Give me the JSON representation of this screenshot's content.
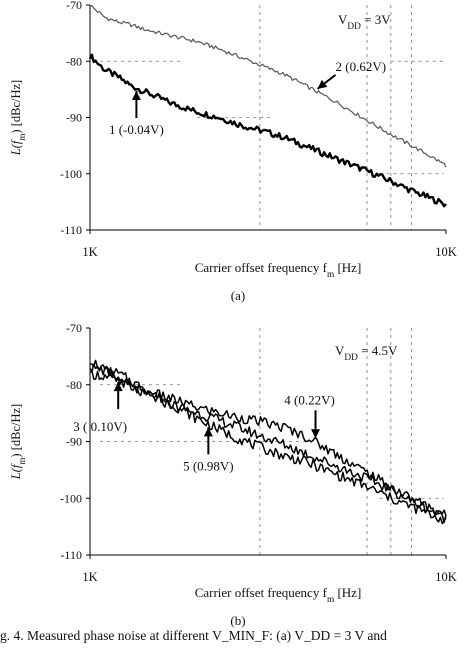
{
  "figure_caption": "g. 4.   Measured phase noise at different V_MIN_F: (a) V_DD = 3 V and",
  "chart_data": [
    {
      "type": "line",
      "panel_label": "(a)",
      "xlabel": "Carrier offset frequency f_m [Hz]",
      "ylabel": "L(f_m) [dBc/Hz]",
      "xscale": "log",
      "xlim": [
        1000,
        10000
      ],
      "ylim": [
        -110,
        -70
      ],
      "x_ticks": [
        {
          "value": 1000,
          "label": "1K"
        },
        {
          "value": 10000,
          "label": "10K"
        }
      ],
      "y_ticks": [
        -70,
        -80,
        -90,
        -100,
        -110
      ],
      "grid": "partial dashed",
      "annotation": "V_DD = 3V",
      "series": [
        {
          "name": "1 (-0.04V)",
          "color": "#000000",
          "width": 2.4,
          "x": [
            1000,
            1100,
            1200,
            1300,
            1400,
            1500,
            1700,
            2000,
            2300,
            2700,
            3100,
            3500,
            4000,
            5000,
            6000,
            7000,
            8000,
            9000,
            10000
          ],
          "y": [
            -79,
            -81.5,
            -82.8,
            -84.3,
            -85.2,
            -86.0,
            -87.5,
            -89.0,
            -90.0,
            -91.5,
            -92.5,
            -93.5,
            -95.0,
            -97.5,
            -99.5,
            -101.3,
            -103.0,
            -104.3,
            -105.5
          ]
        },
        {
          "name": "2 (0.62V)",
          "color": "#555555",
          "width": 1.2,
          "x": [
            1000,
            1100,
            1200,
            1300,
            1400,
            1500,
            1700,
            2000,
            2300,
            2700,
            3100,
            3500,
            4000,
            5000,
            6000,
            7000,
            8000,
            9000,
            10000
          ],
          "y": [
            -70,
            -72.2,
            -73.0,
            -73.5,
            -74.2,
            -74.7,
            -75.5,
            -76.5,
            -77.8,
            -79.5,
            -81.0,
            -82.3,
            -84.2,
            -87.5,
            -90.5,
            -93.0,
            -95.0,
            -96.8,
            -98.5
          ]
        }
      ],
      "labels": [
        {
          "text": "1 (-0.04V)",
          "series": "1 (-0.04V)",
          "arrow": "up",
          "at_x": 1350
        },
        {
          "text": "2 (0.62V)",
          "series": "2 (0.62V)",
          "arrow": "down-left",
          "at_x": 4300
        }
      ]
    },
    {
      "type": "line",
      "panel_label": "(b)",
      "xlabel": "Carrier offset frequency f_m [Hz]",
      "ylabel": "L(f_m) [dBc/Hz]",
      "xscale": "log",
      "xlim": [
        1000,
        10000
      ],
      "ylim": [
        -110,
        -70
      ],
      "x_ticks": [
        {
          "value": 1000,
          "label": "1K"
        },
        {
          "value": 10000,
          "label": "10K"
        }
      ],
      "y_ticks": [
        -70,
        -80,
        -90,
        -100,
        -110
      ],
      "grid": "partial dashed",
      "annotation": "V_DD = 4.5V",
      "series": [
        {
          "name": "3 ( 0.10V)",
          "color": "#000000",
          "width": 1.5,
          "x": [
            1000,
            1100,
            1200,
            1400,
            1600,
            2000,
            2500,
            3000,
            3500,
            4000,
            5000,
            6000,
            7000,
            8000,
            10000
          ],
          "y": [
            -75.5,
            -77.5,
            -79.0,
            -81.5,
            -83.0,
            -85.0,
            -87.0,
            -89.0,
            -90.5,
            -92.0,
            -94.5,
            -96.5,
            -98.5,
            -100.5,
            -103.5
          ]
        },
        {
          "name": "4 (0.22V)",
          "color": "#000000",
          "width": 1.5,
          "x": [
            1000,
            1100,
            1200,
            1400,
            1600,
            2000,
            2500,
            3000,
            3500,
            4000,
            5000,
            6000,
            7000,
            8000,
            10000
          ],
          "y": [
            -78.0,
            -78.5,
            -79.5,
            -81.0,
            -82.0,
            -84.0,
            -85.5,
            -86.5,
            -87.5,
            -89.0,
            -92.5,
            -95.5,
            -98.0,
            -100.0,
            -103.0
          ]
        },
        {
          "name": "5 (0.98V)",
          "color": "#000000",
          "width": 1.5,
          "x": [
            1000,
            1100,
            1200,
            1400,
            1600,
            2000,
            2500,
            3000,
            3500,
            4000,
            5000,
            6000,
            7000,
            8000,
            10000
          ],
          "y": [
            -77.0,
            -77.5,
            -78.0,
            -80.5,
            -82.5,
            -86.0,
            -89.0,
            -91.0,
            -92.5,
            -93.5,
            -96.0,
            -98.0,
            -100.0,
            -101.5,
            -104.0
          ]
        }
      ],
      "labels": [
        {
          "text": "3 ( 0.10V)",
          "series": "3 ( 0.10V)",
          "arrow": "up",
          "at_x": 1200
        },
        {
          "text": "4 (0.22V)",
          "series": "4 (0.22V)",
          "arrow": "down",
          "at_x": 4300
        },
        {
          "text": "5 (0.98V)",
          "series": "5 (0.98V)",
          "arrow": "up",
          "at_x": 2150
        }
      ]
    }
  ]
}
